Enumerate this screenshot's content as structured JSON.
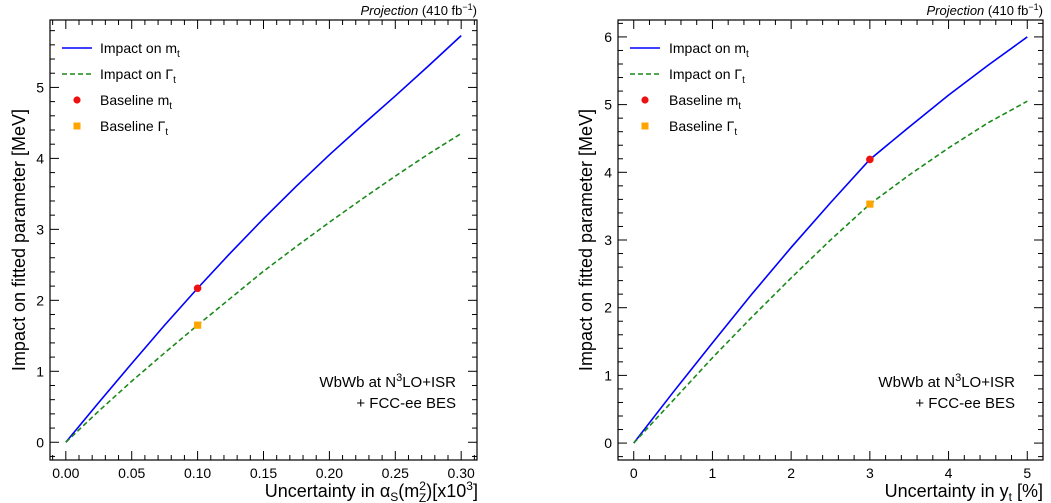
{
  "colors": {
    "mt": "#0000ff",
    "gt": "#1a8a1a",
    "baseline_mt": "#ee1111",
    "baseline_gt": "#ffa500"
  },
  "chart_data": [
    {
      "type": "line",
      "header": {
        "projection": "Projection",
        "lumi": "(410 fb",
        "lumi_exp": "−1",
        "lumi_close": ")"
      },
      "xlabel": {
        "prefix": "Uncertainty in ",
        "alpha": "α",
        "s_sub": "S",
        "paren_open": "(m",
        "z_sup": "2",
        "z_sub": "Z",
        "suffix": ")[x10",
        "exp": "3",
        "close": "]"
      },
      "ylabel": "Impact on fitted parameter [MeV]",
      "xlim": [
        -0.012,
        0.312
      ],
      "ylim": [
        -0.25,
        5.95
      ],
      "xticks": [
        0.0,
        0.05,
        0.1,
        0.15,
        0.2,
        0.25,
        0.3
      ],
      "xtick_labels": [
        "0.00",
        "0.05",
        "0.10",
        "0.15",
        "0.20",
        "0.25",
        "0.30"
      ],
      "yticks": [
        0,
        1,
        2,
        3,
        4,
        5
      ],
      "ytick_labels": [
        "0",
        "1",
        "2",
        "3",
        "4",
        "5"
      ],
      "legend": {
        "mt": {
          "text": "Impact on m",
          "sub": "t"
        },
        "gt": {
          "text": "Impact on Γ",
          "sub": "t"
        },
        "bmt": {
          "text": "Baseline m",
          "sub": "t"
        },
        "bgt": {
          "text": "Baseline Γ",
          "sub": "t"
        }
      },
      "annotation": {
        "line1_a": "WbWb at N",
        "line1_sup": "3",
        "line1_b": "LO+ISR",
        "line2": "+ FCC-ee BES"
      },
      "series": [
        {
          "name": "Impact on mt",
          "style": "solid",
          "x": [
            0.0,
            0.025,
            0.05,
            0.075,
            0.1,
            0.125,
            0.15,
            0.175,
            0.2,
            0.225,
            0.25,
            0.275,
            0.3
          ],
          "y": [
            0.0,
            0.56,
            1.11,
            1.65,
            2.17,
            2.67,
            3.15,
            3.61,
            4.05,
            4.47,
            4.88,
            5.3,
            5.73
          ]
        },
        {
          "name": "Impact on Γt",
          "style": "dashed",
          "x": [
            0.0,
            0.025,
            0.05,
            0.075,
            0.1,
            0.125,
            0.15,
            0.175,
            0.2,
            0.225,
            0.25,
            0.275,
            0.3
          ],
          "y": [
            0.0,
            0.44,
            0.86,
            1.26,
            1.65,
            2.03,
            2.41,
            2.76,
            3.1,
            3.43,
            3.75,
            4.06,
            4.35
          ]
        }
      ],
      "baseline_points": [
        {
          "name": "Baseline mt",
          "x": 0.1,
          "y": 2.17
        },
        {
          "name": "Baseline Γt",
          "x": 0.1,
          "y": 1.65
        }
      ]
    },
    {
      "type": "line",
      "header": {
        "projection": "Projection",
        "lumi": "(410 fb",
        "lumi_exp": "−1",
        "lumi_close": ")"
      },
      "xlabel": {
        "prefix": "Uncertainty in y",
        "sub": "t",
        "suffix": " [%]"
      },
      "ylabel": "Impact on fitted parameter [MeV]",
      "xlim": [
        -0.2,
        5.2
      ],
      "ylim": [
        -0.25,
        6.25
      ],
      "xticks": [
        0,
        1,
        2,
        3,
        4,
        5
      ],
      "xtick_labels": [
        "0",
        "1",
        "2",
        "3",
        "4",
        "5"
      ],
      "yticks": [
        0,
        1,
        2,
        3,
        4,
        5,
        6
      ],
      "ytick_labels": [
        "0",
        "1",
        "2",
        "3",
        "4",
        "5",
        "6"
      ],
      "legend": {
        "mt": {
          "text": "Impact on m",
          "sub": "t"
        },
        "gt": {
          "text": "Impact on Γ",
          "sub": "t"
        },
        "bmt": {
          "text": "Baseline m",
          "sub": "t"
        },
        "bgt": {
          "text": "Baseline Γ",
          "sub": "t"
        }
      },
      "annotation": {
        "line1_a": "WbWb at N",
        "line1_sup": "3",
        "line1_b": "LO+ISR",
        "line2": "+ FCC-ee BES"
      },
      "series": [
        {
          "name": "Impact on mt",
          "style": "solid",
          "x": [
            0.0,
            0.5,
            1.0,
            1.5,
            2.0,
            2.5,
            3.0,
            3.5,
            4.0,
            4.5,
            5.0
          ],
          "y": [
            0.0,
            0.75,
            1.48,
            2.2,
            2.89,
            3.55,
            4.19,
            4.67,
            5.14,
            5.58,
            6.0
          ]
        },
        {
          "name": "Impact on Γt",
          "style": "dashed",
          "x": [
            0.0,
            0.5,
            1.0,
            1.5,
            2.0,
            2.5,
            3.0,
            3.5,
            4.0,
            4.5,
            5.0
          ],
          "y": [
            0.0,
            0.63,
            1.26,
            1.86,
            2.44,
            3.0,
            3.53,
            3.96,
            4.36,
            4.73,
            5.05
          ]
        }
      ],
      "baseline_points": [
        {
          "name": "Baseline mt",
          "x": 3.0,
          "y": 4.19
        },
        {
          "name": "Baseline Γt",
          "x": 3.0,
          "y": 3.53
        }
      ]
    }
  ]
}
